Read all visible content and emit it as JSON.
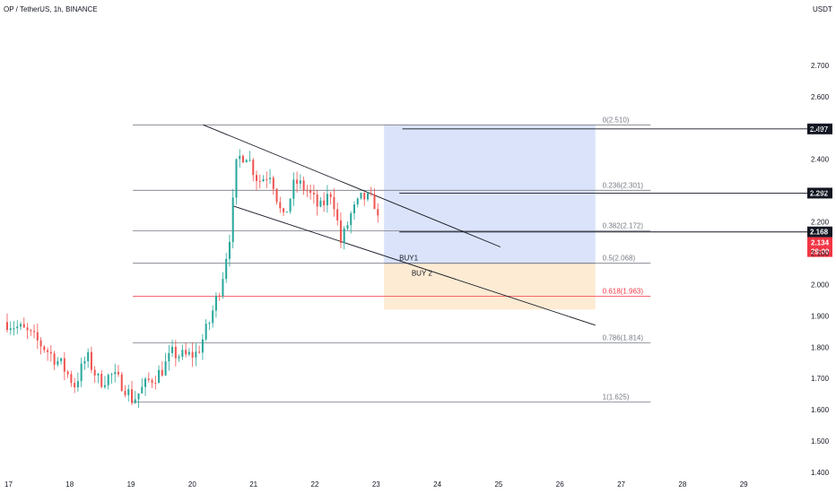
{
  "header": {
    "title": "OP / TetherUS, 1h, BINANCE",
    "currency": "USDT"
  },
  "colors": {
    "up": "#26a69a",
    "down": "#ef5350",
    "fib_line": "#787b86",
    "fib_golden": "#f23645",
    "trend_line": "#131722",
    "profit_zone": "#dbe3fb",
    "loss_zone": "#fdebd3",
    "tag_bg": "#131722",
    "price_tag_bg": "#f23645"
  },
  "chart_data": {
    "type": "candlestick",
    "title": "OP / TetherUS, 1h, BINANCE",
    "ylim": [
      1.4,
      2.8
    ],
    "y_ticks": [
      "2.700",
      "2.600",
      "2.500",
      "2.400",
      "2.300",
      "2.200",
      "2.100",
      "2.000",
      "1.900",
      "1.800",
      "1.700",
      "1.600",
      "1.500",
      "1.400"
    ],
    "y_tick_values": [
      2.7,
      2.6,
      2.5,
      2.4,
      2.3,
      2.2,
      2.1,
      2.0,
      1.9,
      1.8,
      1.7,
      1.6,
      1.5,
      1.4
    ],
    "xlim": [
      17.0,
      30.0
    ],
    "x_ticks": [
      "17",
      "18",
      "19",
      "20",
      "21",
      "22",
      "23",
      "24",
      "25",
      "26",
      "27",
      "28",
      "29"
    ],
    "x_tick_values": [
      17,
      18,
      19,
      20,
      21,
      22,
      23,
      24,
      25,
      26,
      27,
      28,
      29
    ],
    "candle_anchors": [
      [
        17.0,
        1.88
      ],
      [
        17.3,
        1.85
      ],
      [
        17.6,
        1.8
      ],
      [
        17.9,
        1.74
      ],
      [
        18.1,
        1.68
      ],
      [
        18.3,
        1.77
      ],
      [
        18.5,
        1.69
      ],
      [
        18.7,
        1.71
      ],
      [
        18.9,
        1.68
      ],
      [
        19.05,
        1.63
      ],
      [
        19.3,
        1.69
      ],
      [
        19.5,
        1.72
      ],
      [
        19.7,
        1.78
      ],
      [
        19.9,
        1.77
      ],
      [
        20.1,
        1.78
      ],
      [
        20.3,
        1.88
      ],
      [
        20.5,
        2.01
      ],
      [
        20.65,
        2.18
      ],
      [
        20.75,
        2.4
      ],
      [
        20.9,
        2.42
      ],
      [
        21.1,
        2.33
      ],
      [
        21.3,
        2.36
      ],
      [
        21.5,
        2.2
      ],
      [
        21.7,
        2.33
      ],
      [
        21.9,
        2.3
      ],
      [
        22.1,
        2.24
      ],
      [
        22.3,
        2.3
      ],
      [
        22.45,
        2.13
      ],
      [
        22.6,
        2.22
      ],
      [
        22.8,
        2.28
      ],
      [
        23.0,
        2.26
      ],
      [
        23.1,
        2.15
      ]
    ],
    "fib_levels": [
      {
        "label": "0(2.510)",
        "value": 2.51
      },
      {
        "label": "0.236(2.301)",
        "value": 2.301
      },
      {
        "label": "0.382(2.172)",
        "value": 2.172
      },
      {
        "label": "0.5(2.068)",
        "value": 2.068
      },
      {
        "label": "0.618(1.963)",
        "value": 1.963
      },
      {
        "label": "0.786(1.814)",
        "value": 1.814
      },
      {
        "label": "1(1.625)",
        "value": 1.625
      }
    ],
    "price_tags": [
      {
        "label": "2.497",
        "value": 2.497
      },
      {
        "label": "2.292",
        "value": 2.292
      },
      {
        "label": "2.168",
        "value": 2.168
      }
    ],
    "current_price": {
      "label": "2.134",
      "countdown": "39:00",
      "value": 2.134
    },
    "annotations": [
      {
        "label": "BUY1",
        "x": 23.4,
        "y": 2.068
      },
      {
        "label": "BUY 2",
        "x": 23.6,
        "y": 2.02
      }
    ],
    "trend_lines": [
      {
        "x1": 20.2,
        "y1": 2.51,
        "x2": 25.05,
        "y2": 2.12
      },
      {
        "x1": 20.7,
        "y1": 2.25,
        "x2": 26.6,
        "y2": 1.87
      }
    ],
    "position": {
      "x_start": 23.15,
      "x_end": 26.6,
      "top": 2.51,
      "entry": 2.068,
      "stop": 1.92
    }
  }
}
